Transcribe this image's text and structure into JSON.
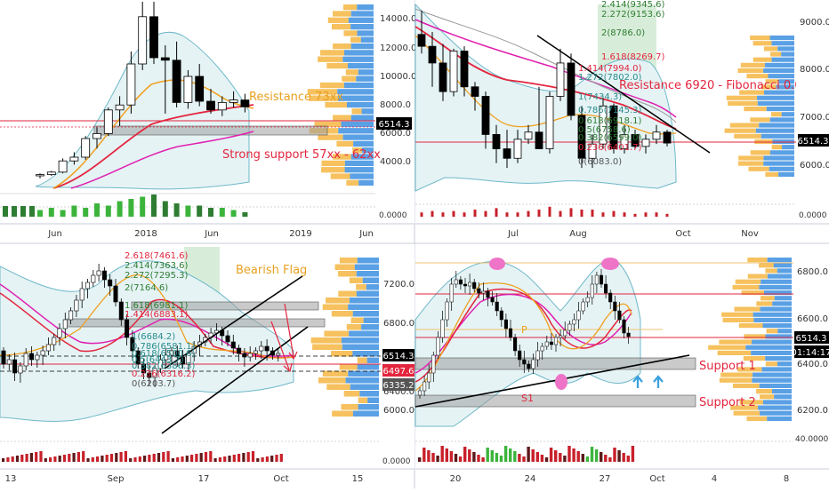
{
  "chart_data": [
    {
      "type": "candlestick",
      "panel": "top-left",
      "x_ticks": [
        "Jun",
        "2018",
        "Jun",
        "2019",
        "Jun"
      ],
      "y_ticks": [
        "14000.0",
        "12000.0",
        "10000.0",
        "8000.0",
        "6000.0",
        "4000.0"
      ],
      "volume_tick": "0.0000",
      "price_tag": "6514.3",
      "ylim": [
        0,
        15000
      ],
      "annotations": [
        "Resistance 73xx",
        "Strong support 57xx - 62xx"
      ],
      "candles": [
        {
          "o": 1000,
          "h": 1200,
          "l": 800,
          "c": 1100
        },
        {
          "o": 1100,
          "h": 1400,
          "l": 1000,
          "c": 1300
        },
        {
          "o": 1300,
          "h": 2400,
          "l": 1200,
          "c": 2200
        },
        {
          "o": 2200,
          "h": 2900,
          "l": 1900,
          "c": 2500
        },
        {
          "o": 2500,
          "h": 4200,
          "l": 2300,
          "c": 4000
        },
        {
          "o": 4000,
          "h": 4900,
          "l": 3200,
          "c": 4400
        },
        {
          "o": 4400,
          "h": 6500,
          "l": 4200,
          "c": 6300
        },
        {
          "o": 6300,
          "h": 7400,
          "l": 5000,
          "c": 6700
        },
        {
          "o": 6700,
          "h": 11000,
          "l": 6000,
          "c": 10000
        },
        {
          "o": 10000,
          "h": 15000,
          "l": 9500,
          "c": 13800
        },
        {
          "o": 13800,
          "h": 15000,
          "l": 10000,
          "c": 10500
        },
        {
          "o": 10500,
          "h": 11500,
          "l": 6000,
          "c": 10300
        },
        {
          "o": 10300,
          "h": 11800,
          "l": 6500,
          "c": 6900
        },
        {
          "o": 6900,
          "h": 9500,
          "l": 6400,
          "c": 9000
        },
        {
          "o": 9000,
          "h": 10000,
          "l": 6600,
          "c": 7000
        },
        {
          "o": 7000,
          "h": 8000,
          "l": 6000,
          "c": 6300
        },
        {
          "o": 6300,
          "h": 7400,
          "l": 5800,
          "c": 6900
        },
        {
          "o": 6900,
          "h": 7800,
          "l": 6500,
          "c": 7100
        },
        {
          "o": 7100,
          "h": 7600,
          "l": 6100,
          "c": 6550
        }
      ],
      "volume": [
        3,
        4,
        3,
        5,
        4,
        6,
        5,
        7,
        8,
        9,
        10,
        7,
        6,
        5,
        5,
        4,
        4,
        3,
        2
      ]
    },
    {
      "type": "candlestick",
      "panel": "top-right",
      "x_ticks": [
        "Jul",
        "Aug",
        "Oct",
        "Nov"
      ],
      "y_ticks": [
        "9000.0",
        "8000.0",
        "7000.0",
        "6000.0"
      ],
      "volume_tick": "0.0000",
      "price_tag": "6514.3",
      "annotations": [
        "Resistance 6920 - Fibonacci 0.618"
      ],
      "fib_levels": [
        "2.414(9345.6)",
        "2.272(9153.6)",
        "2(8786.0)",
        "1.618(8269.7)",
        "1.414(7994.0)",
        "1.272(7802.0)",
        "1(7434.3)",
        "0.786(7145.3)",
        "0.618(6918.1)",
        "0.5(6758.6)",
        "0.382(6599.0)",
        "0.236(6401.7)",
        "0(6083.0)"
      ],
      "candles": [
        {
          "o": 8800,
          "h": 9300,
          "l": 8400,
          "c": 8550
        },
        {
          "o": 8550,
          "h": 8850,
          "l": 7700,
          "c": 8200
        },
        {
          "o": 8200,
          "h": 8600,
          "l": 7400,
          "c": 7600
        },
        {
          "o": 7600,
          "h": 8500,
          "l": 7500,
          "c": 8450
        },
        {
          "o": 8450,
          "h": 8550,
          "l": 7500,
          "c": 7700
        },
        {
          "o": 7700,
          "h": 7800,
          "l": 7200,
          "c": 7500
        },
        {
          "o": 7500,
          "h": 7600,
          "l": 6400,
          "c": 6700
        },
        {
          "o": 6700,
          "h": 6900,
          "l": 6100,
          "c": 6400
        },
        {
          "o": 6400,
          "h": 6800,
          "l": 6000,
          "c": 6200
        },
        {
          "o": 6200,
          "h": 6800,
          "l": 6100,
          "c": 6600
        },
        {
          "o": 6600,
          "h": 6900,
          "l": 6500,
          "c": 6750
        },
        {
          "o": 6750,
          "h": 7700,
          "l": 6400,
          "c": 6400
        },
        {
          "o": 6400,
          "h": 7600,
          "l": 6300,
          "c": 7500
        },
        {
          "o": 7500,
          "h": 8500,
          "l": 7400,
          "c": 8200
        },
        {
          "o": 8200,
          "h": 8400,
          "l": 7000,
          "c": 7100
        },
        {
          "o": 7100,
          "h": 7300,
          "l": 6000,
          "c": 6200
        },
        {
          "o": 6200,
          "h": 6700,
          "l": 6000,
          "c": 6500
        },
        {
          "o": 6500,
          "h": 7500,
          "l": 6400,
          "c": 7300
        },
        {
          "o": 7300,
          "h": 7350,
          "l": 6300,
          "c": 6400
        },
        {
          "o": 6400,
          "h": 6900,
          "l": 6300,
          "c": 6700
        },
        {
          "o": 6700,
          "h": 6800,
          "l": 6400,
          "c": 6450
        },
        {
          "o": 6450,
          "h": 6700,
          "l": 6300,
          "c": 6600
        },
        {
          "o": 6600,
          "h": 6900,
          "l": 6500,
          "c": 6750
        },
        {
          "o": 6750,
          "h": 6800,
          "l": 6450,
          "c": 6520
        }
      ],
      "volume": [
        3,
        4,
        3,
        4,
        3,
        5,
        4,
        6,
        3,
        3,
        4,
        5,
        7,
        4,
        6,
        5,
        5,
        3,
        4,
        3,
        2,
        3,
        3,
        2
      ]
    },
    {
      "type": "candlestick",
      "panel": "bottom-left",
      "x_ticks": [
        "13",
        "Sep",
        "17",
        "Oct",
        "15"
      ],
      "y_ticks": [
        "7200.0",
        "6800.0",
        "6400.0",
        "6000.0"
      ],
      "volume_tick": "0.0000",
      "price_tags": [
        "6514.3",
        "6497.6",
        "6335.2"
      ],
      "annotations": [
        "Bearish Flag"
      ],
      "fib_levels": [
        "2.618(7461.6)",
        "2.414(7363.6)",
        "2.272(7295.3)",
        "2(7164.6)",
        "1.618(6981.1)",
        "1.414(6883.1)",
        "1(6684.2)",
        "0.786(6581.1)",
        "0.618(6500.6)",
        "0.5(6443.7)",
        "0.382(6386.3)",
        "0.236(6316.2)",
        "0(6203.7)"
      ]
    },
    {
      "type": "candlestick",
      "panel": "bottom-right",
      "x_ticks": [
        "20",
        "24",
        "27",
        "Oct",
        "4",
        "8"
      ],
      "y_ticks": [
        "6800.0",
        "6600.0",
        "6400.0",
        "6200.0"
      ],
      "volume_tick": "40.0000",
      "price_tags": [
        "6514.3",
        "01:14:17"
      ],
      "annotations": [
        "Support 1",
        "Support 2",
        "P",
        "S1"
      ]
    }
  ],
  "colors": {
    "up": "#ffffff",
    "down": "#000000",
    "ema_fast": "#f0a020",
    "ema_mid": "#e3253e",
    "ema_slow": "#e020b0",
    "bollinger": "#6fb8c8",
    "resistance": "#e8a020",
    "support": "#e3253e",
    "vol_up": "#3cb43c",
    "vol_down": "#c8202a",
    "zone": "#9e9e9e",
    "highlight_pink": "#ee74c8",
    "arrow_blue": "#3aa0e0"
  }
}
